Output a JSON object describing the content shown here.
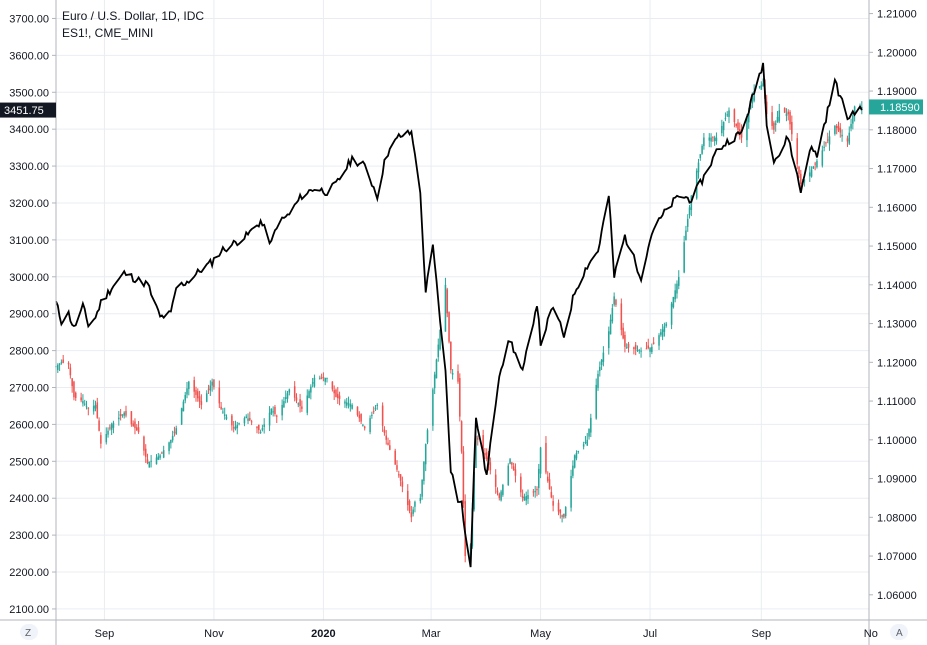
{
  "legend": {
    "title": "Euro / U.S. Dollar, 1D, IDC",
    "subtitle": "ES1!, CME_MINI"
  },
  "corner": {
    "left": "Z",
    "right": "A"
  },
  "price_tags": {
    "left": {
      "label": "3451.75",
      "value": 3451.75,
      "color": "#131722"
    },
    "right": {
      "label": "1.18590",
      "value": 1.1859,
      "color": "#26a69a"
    }
  },
  "colors": {
    "up": "#26a69a",
    "down": "#ef5350",
    "line": "#000000",
    "grid": "#e9edf2",
    "border": "#b2b5be"
  },
  "chart_data": {
    "type": "line",
    "title": "Euro / U.S. Dollar, 1D, IDC",
    "x_range": [
      "2019-08-05",
      "2020-10-31"
    ],
    "x_ticks": [
      {
        "label": "Sep",
        "date": "2019-09-01"
      },
      {
        "label": "Nov",
        "date": "2019-11-01"
      },
      {
        "label": "2020",
        "date": "2020-01-01"
      },
      {
        "label": "Mar",
        "date": "2020-03-01"
      },
      {
        "label": "May",
        "date": "2020-05-01"
      },
      {
        "label": "Jul",
        "date": "2020-07-01"
      },
      {
        "label": "Sep",
        "date": "2020-09-01"
      },
      {
        "label": "No",
        "date": "2020-11-01"
      }
    ],
    "left_axis": {
      "series": "ES1!, CME_MINI",
      "range": [
        2070,
        3750
      ],
      "ticks": [
        "3700.00",
        "3600.00",
        "3500.00",
        "3400.00",
        "3300.00",
        "3200.00",
        "3100.00",
        "3000.00",
        "2900.00",
        "2800.00",
        "2700.00",
        "2600.00",
        "2500.00",
        "2400.00",
        "2300.00",
        "2200.00",
        "2100.00"
      ]
    },
    "right_axis": {
      "series": "Euro / U.S. Dollar, 1D, IDC",
      "range": [
        1.0535,
        1.2135
      ],
      "ticks": [
        "1.21000",
        "1.20000",
        "1.19000",
        "1.18000",
        "1.17000",
        "1.16000",
        "1.15000",
        "1.14000",
        "1.13000",
        "1.12000",
        "1.11000",
        "1.10000",
        "1.09000",
        "1.08000",
        "1.07000",
        "1.06000"
      ]
    },
    "grid": true,
    "series": [
      {
        "name": "ES1!, CME_MINI",
        "style": "line",
        "axis": "left",
        "points": [
          [
            "2019-08-05",
            2930
          ],
          [
            "2019-08-08",
            2880
          ],
          [
            "2019-08-12",
            2900
          ],
          [
            "2019-08-15",
            2860
          ],
          [
            "2019-08-20",
            2920
          ],
          [
            "2019-08-23",
            2870
          ],
          [
            "2019-08-27",
            2890
          ],
          [
            "2019-08-30",
            2930
          ],
          [
            "2019-09-05",
            2970
          ],
          [
            "2019-09-12",
            3010
          ],
          [
            "2019-09-16",
            3000
          ],
          [
            "2019-09-20",
            2990
          ],
          [
            "2019-09-25",
            2980
          ],
          [
            "2019-10-02",
            2890
          ],
          [
            "2019-10-08",
            2900
          ],
          [
            "2019-10-11",
            2970
          ],
          [
            "2019-10-18",
            2990
          ],
          [
            "2019-10-25",
            3020
          ],
          [
            "2019-10-31",
            3040
          ],
          [
            "2019-11-05",
            3070
          ],
          [
            "2019-11-12",
            3090
          ],
          [
            "2019-11-19",
            3110
          ],
          [
            "2019-11-27",
            3150
          ],
          [
            "2019-12-03",
            3090
          ],
          [
            "2019-12-06",
            3140
          ],
          [
            "2019-12-13",
            3170
          ],
          [
            "2019-12-20",
            3220
          ],
          [
            "2019-12-27",
            3240
          ],
          [
            "2020-01-03",
            3230
          ],
          [
            "2020-01-08",
            3250
          ],
          [
            "2020-01-17",
            3320
          ],
          [
            "2020-01-24",
            3300
          ],
          [
            "2020-01-31",
            3220
          ],
          [
            "2020-02-05",
            3330
          ],
          [
            "2020-02-12",
            3380
          ],
          [
            "2020-02-19",
            3390
          ],
          [
            "2020-02-21",
            3340
          ],
          [
            "2020-02-24",
            3220
          ],
          [
            "2020-02-27",
            2960
          ],
          [
            "2020-03-02",
            3080
          ],
          [
            "2020-03-09",
            2740
          ],
          [
            "2020-03-12",
            2480
          ],
          [
            "2020-03-16",
            2390
          ],
          [
            "2020-03-18",
            2400
          ],
          [
            "2020-03-20",
            2300
          ],
          [
            "2020-03-23",
            2220
          ],
          [
            "2020-03-26",
            2620
          ],
          [
            "2020-04-01",
            2460
          ],
          [
            "2020-04-08",
            2740
          ],
          [
            "2020-04-14",
            2830
          ],
          [
            "2020-04-21",
            2740
          ],
          [
            "2020-04-29",
            2930
          ],
          [
            "2020-05-01",
            2820
          ],
          [
            "2020-05-08",
            2920
          ],
          [
            "2020-05-14",
            2840
          ],
          [
            "2020-05-20",
            2960
          ],
          [
            "2020-05-27",
            3030
          ],
          [
            "2020-06-02",
            3070
          ],
          [
            "2020-06-08",
            3220
          ],
          [
            "2020-06-11",
            3000
          ],
          [
            "2020-06-17",
            3110
          ],
          [
            "2020-06-26",
            3000
          ],
          [
            "2020-07-02",
            3120
          ],
          [
            "2020-07-10",
            3180
          ],
          [
            "2020-07-17",
            3220
          ],
          [
            "2020-07-24",
            3210
          ],
          [
            "2020-07-31",
            3270
          ],
          [
            "2020-08-07",
            3340
          ],
          [
            "2020-08-14",
            3370
          ],
          [
            "2020-08-21",
            3390
          ],
          [
            "2020-08-28",
            3500
          ],
          [
            "2020-09-02",
            3580
          ],
          [
            "2020-09-04",
            3420
          ],
          [
            "2020-09-08",
            3320
          ],
          [
            "2020-09-11",
            3330
          ],
          [
            "2020-09-16",
            3380
          ],
          [
            "2020-09-23",
            3230
          ],
          [
            "2020-09-28",
            3350
          ],
          [
            "2020-10-02",
            3330
          ],
          [
            "2020-10-12",
            3530
          ],
          [
            "2020-10-19",
            3430
          ],
          [
            "2020-10-23",
            3450
          ],
          [
            "2020-10-27",
            3451.75
          ]
        ]
      },
      {
        "name": "Euro / U.S. Dollar, 1D, IDC",
        "style": "candlestick",
        "axis": "right",
        "points": [
          [
            "2019-08-05",
            1.119
          ],
          [
            "2019-08-08",
            1.12
          ],
          [
            "2019-08-12",
            1.1195
          ],
          [
            "2019-08-15",
            1.111
          ],
          [
            "2019-08-20",
            1.11
          ],
          [
            "2019-08-23",
            1.108
          ],
          [
            "2019-08-27",
            1.109
          ],
          [
            "2019-08-30",
            1.099
          ],
          [
            "2019-09-05",
            1.104
          ],
          [
            "2019-09-12",
            1.107
          ],
          [
            "2019-09-16",
            1.104
          ],
          [
            "2019-09-20",
            1.102
          ],
          [
            "2019-09-25",
            1.094
          ],
          [
            "2019-10-02",
            1.096
          ],
          [
            "2019-10-08",
            1.1
          ],
          [
            "2019-10-11",
            1.103
          ],
          [
            "2019-10-18",
            1.115
          ],
          [
            "2019-10-25",
            1.109
          ],
          [
            "2019-10-31",
            1.115
          ],
          [
            "2019-11-05",
            1.108
          ],
          [
            "2019-11-12",
            1.103
          ],
          [
            "2019-11-19",
            1.106
          ],
          [
            "2019-11-27",
            1.102
          ],
          [
            "2019-12-03",
            1.108
          ],
          [
            "2019-12-06",
            1.106
          ],
          [
            "2019-12-13",
            1.113
          ],
          [
            "2019-12-20",
            1.108
          ],
          [
            "2019-12-27",
            1.116
          ],
          [
            "2020-01-03",
            1.116
          ],
          [
            "2020-01-08",
            1.111
          ],
          [
            "2020-01-17",
            1.109
          ],
          [
            "2020-01-24",
            1.103
          ],
          [
            "2020-01-31",
            1.109
          ],
          [
            "2020-02-05",
            1.1
          ],
          [
            "2020-02-12",
            1.091
          ],
          [
            "2020-02-19",
            1.08
          ],
          [
            "2020-02-21",
            1.084
          ],
          [
            "2020-02-24",
            1.085
          ],
          [
            "2020-02-27",
            1.099
          ],
          [
            "2020-03-02",
            1.113
          ],
          [
            "2020-03-09",
            1.14
          ],
          [
            "2020-03-12",
            1.118
          ],
          [
            "2020-03-16",
            1.115
          ],
          [
            "2020-03-18",
            1.097
          ],
          [
            "2020-03-20",
            1.07
          ],
          [
            "2020-03-23",
            1.073
          ],
          [
            "2020-03-26",
            1.101
          ],
          [
            "2020-04-01",
            1.095
          ],
          [
            "2020-04-08",
            1.085
          ],
          [
            "2020-04-14",
            1.095
          ],
          [
            "2020-04-21",
            1.085
          ],
          [
            "2020-04-29",
            1.087
          ],
          [
            "2020-05-01",
            1.098
          ],
          [
            "2020-05-08",
            1.083
          ],
          [
            "2020-05-14",
            1.08
          ],
          [
            "2020-05-20",
            1.096
          ],
          [
            "2020-05-27",
            1.1
          ],
          [
            "2020-06-02",
            1.117
          ],
          [
            "2020-06-08",
            1.128
          ],
          [
            "2020-06-11",
            1.137
          ],
          [
            "2020-06-17",
            1.124
          ],
          [
            "2020-06-26",
            1.123
          ],
          [
            "2020-07-02",
            1.124
          ],
          [
            "2020-07-10",
            1.13
          ],
          [
            "2020-07-17",
            1.142
          ],
          [
            "2020-07-24",
            1.163
          ],
          [
            "2020-07-31",
            1.178
          ],
          [
            "2020-08-07",
            1.178
          ],
          [
            "2020-08-14",
            1.185
          ],
          [
            "2020-08-21",
            1.178
          ],
          [
            "2020-08-28",
            1.19
          ],
          [
            "2020-09-02",
            1.192
          ],
          [
            "2020-09-04",
            1.184
          ],
          [
            "2020-09-08",
            1.18
          ],
          [
            "2020-09-11",
            1.185
          ],
          [
            "2020-09-16",
            1.184
          ],
          [
            "2020-09-23",
            1.166
          ],
          [
            "2020-09-28",
            1.169
          ],
          [
            "2020-10-02",
            1.172
          ],
          [
            "2020-10-12",
            1.181
          ],
          [
            "2020-10-19",
            1.177
          ],
          [
            "2020-10-23",
            1.186
          ],
          [
            "2020-10-27",
            1.1859
          ]
        ]
      }
    ]
  }
}
